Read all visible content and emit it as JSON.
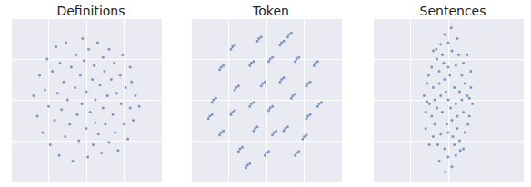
{
  "chart_data": [
    {
      "type": "scatter",
      "title": "Definitions",
      "color": "#4c72b0",
      "grid": true,
      "tick_labels": false,
      "xlim": [
        -100,
        100
      ],
      "ylim": [
        -100,
        100
      ],
      "xticks": [
        -100,
        -50,
        0,
        50,
        100
      ],
      "yticks": [
        -100,
        -50,
        0,
        50,
        100
      ],
      "points": [
        [
          -70,
          5
        ],
        [
          -65,
          -20
        ],
        [
          -62,
          30
        ],
        [
          -58,
          -40
        ],
        [
          -55,
          12
        ],
        [
          -52,
          50
        ],
        [
          -50,
          -8
        ],
        [
          -48,
          -55
        ],
        [
          -45,
          35
        ],
        [
          -42,
          -25
        ],
        [
          -40,
          65
        ],
        [
          -38,
          8
        ],
        [
          -36,
          -68
        ],
        [
          -35,
          45
        ],
        [
          -33,
          -12
        ],
        [
          -30,
          22
        ],
        [
          -28,
          -45
        ],
        [
          -27,
          70
        ],
        [
          -25,
          0
        ],
        [
          -22,
          -30
        ],
        [
          -20,
          40
        ],
        [
          -18,
          -75
        ],
        [
          -15,
          15
        ],
        [
          -14,
          55
        ],
        [
          -12,
          -18
        ],
        [
          -10,
          -50
        ],
        [
          -8,
          30
        ],
        [
          -6,
          -5
        ],
        [
          -5,
          75
        ],
        [
          -3,
          48
        ],
        [
          0,
          -35
        ],
        [
          0,
          10
        ],
        [
          2,
          -70
        ],
        [
          3,
          62
        ],
        [
          5,
          -15
        ],
        [
          8,
          25
        ],
        [
          9,
          -55
        ],
        [
          10,
          42
        ],
        [
          12,
          0
        ],
        [
          12,
          -28
        ],
        [
          15,
          70
        ],
        [
          16,
          -42
        ],
        [
          18,
          18
        ],
        [
          20,
          -65
        ],
        [
          22,
          52
        ],
        [
          22,
          -10
        ],
        [
          24,
          35
        ],
        [
          25,
          -30
        ],
        [
          28,
          5
        ],
        [
          30,
          62
        ],
        [
          30,
          -52
        ],
        [
          33,
          25
        ],
        [
          35,
          -18
        ],
        [
          37,
          45
        ],
        [
          38,
          -40
        ],
        [
          40,
          8
        ],
        [
          42,
          -62
        ],
        [
          45,
          30
        ],
        [
          46,
          -5
        ],
        [
          48,
          55
        ],
        [
          50,
          -30
        ],
        [
          52,
          15
        ],
        [
          55,
          -48
        ],
        [
          58,
          40
        ],
        [
          58,
          -10
        ],
        [
          60,
          22
        ],
        [
          62,
          -25
        ],
        [
          65,
          5
        ],
        [
          70,
          -8
        ]
      ]
    },
    {
      "type": "scatter",
      "title": "Token",
      "color": "#4c72b0",
      "grid": true,
      "tick_labels": false,
      "xlim": [
        -100,
        100
      ],
      "ylim": [
        -100,
        100
      ],
      "xticks": [
        -100,
        -50,
        0,
        50,
        100
      ],
      "yticks": [
        -100,
        -50,
        0,
        50,
        100
      ],
      "points": [
        [
          -60,
          40
        ],
        [
          -57,
          42
        ],
        [
          -62,
          37
        ],
        [
          -70,
          0
        ],
        [
          -67,
          2
        ],
        [
          -72,
          -3
        ],
        [
          -60,
          -40
        ],
        [
          -57,
          -38
        ],
        [
          -62,
          -43
        ],
        [
          -45,
          65
        ],
        [
          -42,
          67
        ],
        [
          -47,
          62
        ],
        [
          -40,
          15
        ],
        [
          -37,
          17
        ],
        [
          -42,
          12
        ],
        [
          -45,
          -15
        ],
        [
          -42,
          -13
        ],
        [
          -47,
          -18
        ],
        [
          -35,
          -60
        ],
        [
          -32,
          -58
        ],
        [
          -37,
          -63
        ],
        [
          -20,
          45
        ],
        [
          -17,
          47
        ],
        [
          -22,
          42
        ],
        [
          -20,
          -5
        ],
        [
          -17,
          -3
        ],
        [
          -22,
          -8
        ],
        [
          -15,
          -35
        ],
        [
          -12,
          -33
        ],
        [
          -17,
          -38
        ],
        [
          -10,
          75
        ],
        [
          -7,
          77
        ],
        [
          -12,
          72
        ],
        [
          -5,
          20
        ],
        [
          -2,
          22
        ],
        [
          -7,
          17
        ],
        [
          0,
          -65
        ],
        [
          3,
          -63
        ],
        [
          -2,
          -68
        ],
        [
          5,
          50
        ],
        [
          8,
          52
        ],
        [
          3,
          47
        ],
        [
          5,
          -10
        ],
        [
          8,
          -8
        ],
        [
          3,
          -13
        ],
        [
          20,
          70
        ],
        [
          23,
          72
        ],
        [
          18,
          67
        ],
        [
          20,
          25
        ],
        [
          23,
          27
        ],
        [
          18,
          22
        ],
        [
          25,
          -35
        ],
        [
          28,
          -33
        ],
        [
          23,
          -38
        ],
        [
          35,
          5
        ],
        [
          38,
          7
        ],
        [
          33,
          2
        ],
        [
          40,
          -65
        ],
        [
          43,
          -63
        ],
        [
          38,
          -68
        ],
        [
          40,
          50
        ],
        [
          43,
          52
        ],
        [
          38,
          47
        ],
        [
          55,
          20
        ],
        [
          58,
          22
        ],
        [
          53,
          17
        ],
        [
          55,
          -20
        ],
        [
          58,
          -18
        ],
        [
          53,
          -23
        ],
        [
          65,
          45
        ],
        [
          68,
          47
        ],
        [
          63,
          42
        ],
        [
          70,
          -5
        ],
        [
          73,
          -3
        ],
        [
          68,
          -8
        ],
        [
          50,
          -45
        ],
        [
          53,
          -43
        ],
        [
          48,
          -48
        ],
        [
          -25,
          -80
        ],
        [
          -22,
          -78
        ],
        [
          -27,
          -83
        ],
        [
          10,
          -40
        ],
        [
          13,
          -38
        ],
        [
          8,
          -43
        ],
        [
          -75,
          -20
        ],
        [
          -72,
          -18
        ],
        [
          -77,
          -23
        ],
        [
          30,
          80
        ],
        [
          33,
          82
        ],
        [
          28,
          77
        ]
      ]
    },
    {
      "type": "scatter",
      "title": "Sentences",
      "color": "#4c72b0",
      "grid": true,
      "tick_labels": false,
      "xlim": [
        -100,
        100
      ],
      "ylim": [
        -100,
        100
      ],
      "xticks": [
        -100,
        -50,
        0,
        50,
        100
      ],
      "yticks": [
        -100,
        -50,
        0,
        50,
        100
      ],
      "points": [
        [
          0,
          0
        ],
        [
          -10,
          5
        ],
        [
          10,
          -5
        ],
        [
          -20,
          15
        ],
        [
          20,
          -15
        ],
        [
          -5,
          25
        ],
        [
          5,
          -25
        ],
        [
          -15,
          -10
        ],
        [
          15,
          10
        ],
        [
          -25,
          -5
        ],
        [
          25,
          5
        ],
        [
          0,
          40
        ],
        [
          0,
          -40
        ],
        [
          -12,
          35
        ],
        [
          12,
          -35
        ],
        [
          -18,
          -30
        ],
        [
          18,
          30
        ],
        [
          -28,
          20
        ],
        [
          28,
          -20
        ],
        [
          -30,
          -15
        ],
        [
          30,
          15
        ],
        [
          -8,
          55
        ],
        [
          8,
          -55
        ],
        [
          -15,
          50
        ],
        [
          15,
          -50
        ],
        [
          5,
          60
        ],
        [
          -5,
          -60
        ],
        [
          -20,
          -45
        ],
        [
          20,
          45
        ],
        [
          -22,
          40
        ],
        [
          22,
          -40
        ],
        [
          0,
          70
        ],
        [
          0,
          -70
        ],
        [
          -10,
          68
        ],
        [
          10,
          -68
        ],
        [
          -5,
          80
        ],
        [
          5,
          -82
        ],
        [
          -12,
          -75
        ],
        [
          12,
          75
        ],
        [
          -25,
          -55
        ],
        [
          25,
          55
        ],
        [
          -32,
          5
        ],
        [
          32,
          -5
        ],
        [
          -8,
          -15
        ],
        [
          8,
          15
        ],
        [
          -3,
          10
        ],
        [
          3,
          -10
        ],
        [
          -18,
          0
        ],
        [
          18,
          0
        ],
        [
          -12,
          20
        ],
        [
          12,
          -20
        ],
        [
          -26,
          30
        ],
        [
          26,
          -30
        ],
        [
          -6,
          45
        ],
        [
          6,
          -45
        ],
        [
          -16,
          62
        ],
        [
          16,
          -62
        ],
        [
          -2,
          -30
        ],
        [
          2,
          30
        ],
        [
          -22,
          -20
        ],
        [
          22,
          20
        ],
        [
          -30,
          -35
        ],
        [
          30,
          35
        ],
        [
          -14,
          -55
        ],
        [
          14,
          55
        ],
        [
          -4,
          -88
        ],
        [
          4,
          88
        ],
        [
          -20,
          60
        ],
        [
          20,
          -60
        ],
        [
          -10,
          -42
        ],
        [
          10,
          42
        ],
        [
          -28,
          -2
        ],
        [
          28,
          2
        ]
      ]
    }
  ]
}
